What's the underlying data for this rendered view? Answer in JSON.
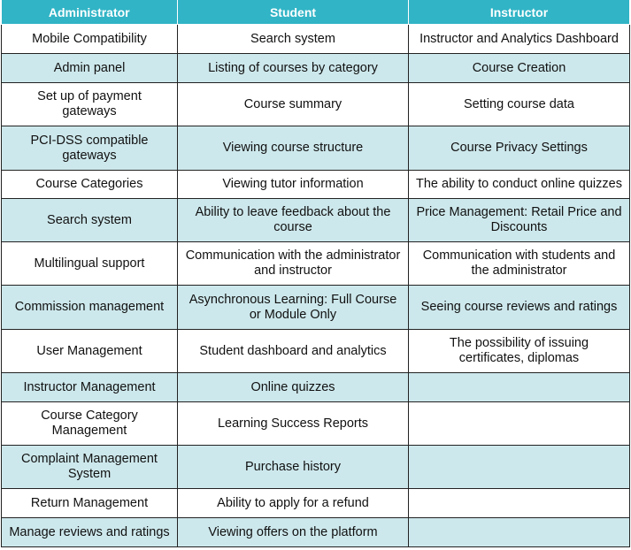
{
  "headers": [
    "Administrator",
    "Student",
    "Instructor"
  ],
  "rows": [
    {
      "admin": "Mobile Compatibility",
      "student": "Search system",
      "instructor": "Instructor and Analytics Dashboard"
    },
    {
      "admin": "Admin panel",
      "student": "Listing of courses by category",
      "instructor": "Course Creation"
    },
    {
      "admin": "Set up of payment\ngateways",
      "student": "Course summary",
      "instructor": "Setting course data"
    },
    {
      "admin": "PCI-DSS compatible\ngateways",
      "student": "Viewing  course structure",
      "instructor": "Course Privacy Settings"
    },
    {
      "admin": "Course Categories",
      "student": "Viewing tutor information",
      "instructor": "The ability to conduct online quizzes"
    },
    {
      "admin": "Search system",
      "student": "Ability to leave feedback about the\ncourse",
      "instructor": "Price Management: Retail Price and\nDiscounts"
    },
    {
      "admin": "Multilingual support",
      "student": "Communication with the administrator\nand instructor",
      "instructor": "Communication with students and\nthe administrator"
    },
    {
      "admin": "Commission management",
      "student": "Asynchronous Learning: Full Course\nor Module Only",
      "instructor": "Seeing course reviews and ratings"
    },
    {
      "admin": "User Management",
      "student": "Student dashboard and analytics",
      "instructor": "The possibility of issuing\ncertificates, diplomas"
    },
    {
      "admin": "Instructor Management",
      "student": "Online quizzes",
      "instructor": ""
    },
    {
      "admin": "Course Category\nManagement",
      "student": "Learning Success Reports",
      "instructor": ""
    },
    {
      "admin": "Complaint Management\nSystem",
      "student": "Purchase history",
      "instructor": ""
    },
    {
      "admin": "Return Management",
      "student": "Ability to apply for a refund",
      "instructor": ""
    },
    {
      "admin": "Manage reviews and ratings",
      "student": "Viewing offers on the platform",
      "instructor": ""
    }
  ]
}
